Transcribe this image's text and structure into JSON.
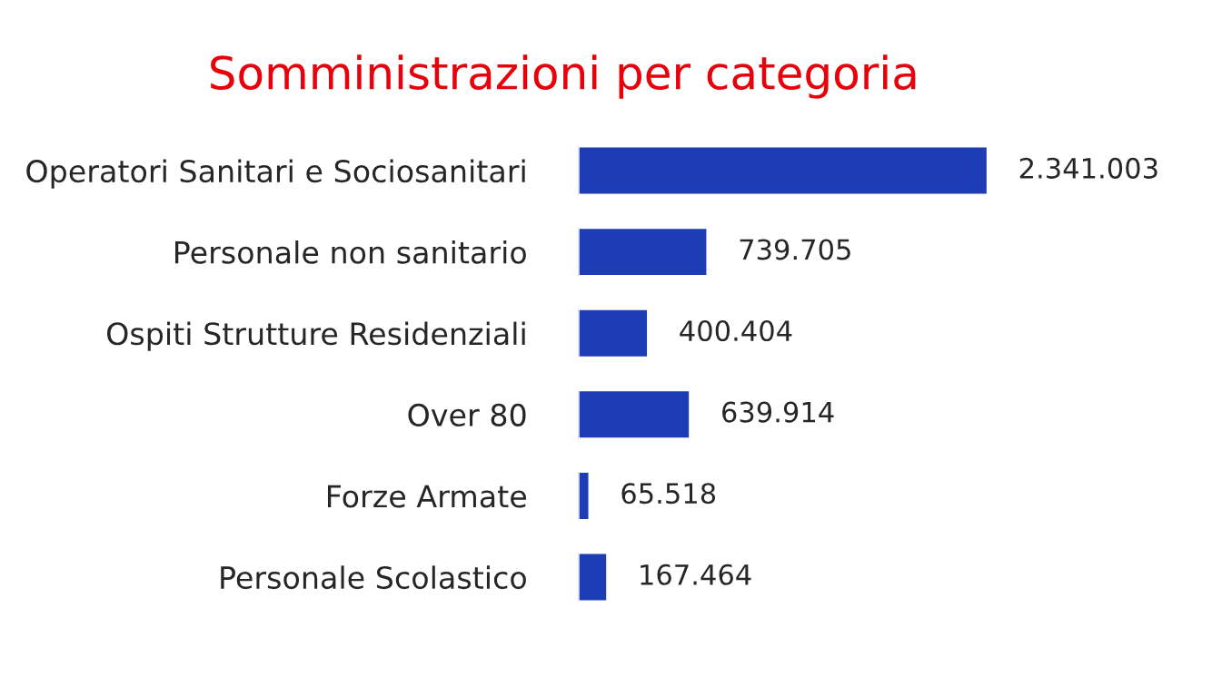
{
  "chart_data": {
    "type": "bar",
    "orientation": "horizontal",
    "title": "Somministrazioni per categoria",
    "categories": [
      "Operatori Sanitari e Sociosanitari",
      "Personale non sanitario",
      "Ospiti Strutture Residenziali",
      "Over 80",
      "Forze Armate",
      "Personale Scolastico"
    ],
    "values": [
      2341003,
      739705,
      400404,
      639914,
      65518,
      167464
    ],
    "value_labels": [
      "2.341.003",
      "739.705",
      "400.404",
      "639.914",
      "65.518",
      "167.464"
    ],
    "color": "#1c3db5",
    "grid": false,
    "legend": false
  }
}
